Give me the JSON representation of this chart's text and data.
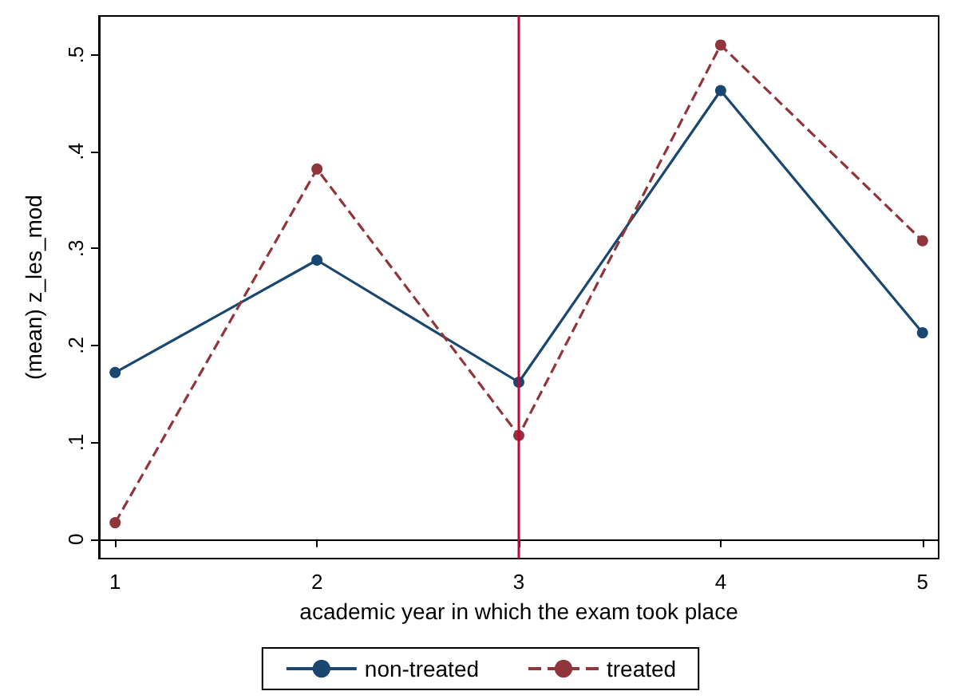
{
  "chart_data": {
    "type": "line",
    "xlabel": "academic year in which the exam took place",
    "ylabel": "(mean) z_les_mod",
    "x": [
      1,
      2,
      3,
      4,
      5
    ],
    "series": [
      {
        "name": "non-treated",
        "color": "#1a476f",
        "values": [
          0.172,
          0.288,
          0.162,
          0.463,
          0.213
        ],
        "line_style": "solid"
      },
      {
        "name": "treated",
        "color": "#90353b",
        "values": [
          0.017,
          0.382,
          0.107,
          0.51,
          0.308
        ],
        "line_style": "dashed"
      }
    ],
    "xlim": [
      0.92,
      5.08
    ],
    "xticks": [
      1,
      2,
      3,
      4,
      5
    ],
    "ylim": [
      -0.02,
      0.54
    ],
    "yticks": [
      {
        "value": 0,
        "label": "0"
      },
      {
        "value": 0.1,
        "label": ".1"
      },
      {
        "value": 0.2,
        "label": ".2"
      },
      {
        "value": 0.3,
        "label": ".3"
      },
      {
        "value": 0.4,
        "label": ".4"
      },
      {
        "value": 0.5,
        "label": ".5"
      }
    ],
    "ref_lines": [
      {
        "axis": "x",
        "value": 3,
        "color": "#c10534"
      }
    ],
    "grid": false,
    "legend": "bottom",
    "marker": "circle"
  }
}
